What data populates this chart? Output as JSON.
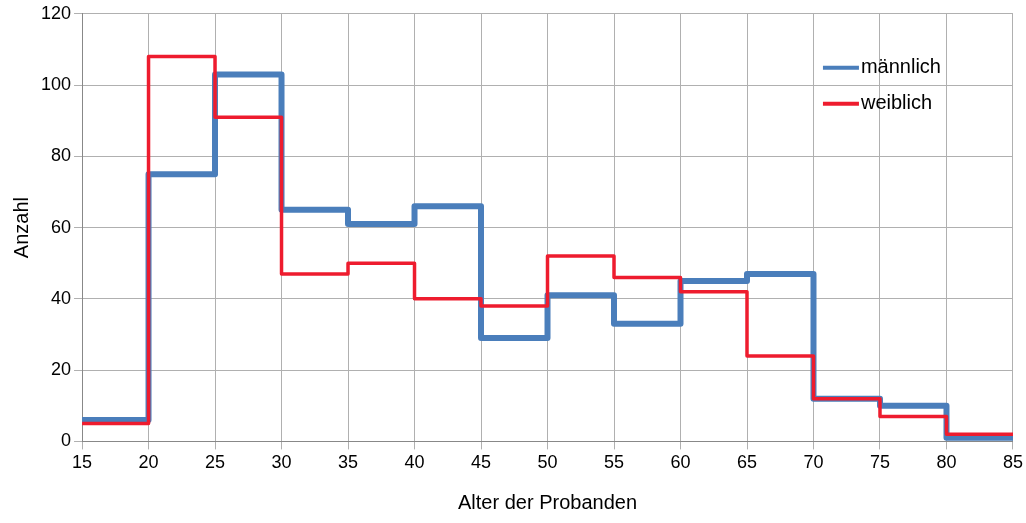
{
  "chart_data": {
    "type": "step",
    "xlabel": "Alter der Probanden",
    "ylabel": "Anzahl",
    "x": [
      15,
      20,
      25,
      30,
      35,
      40,
      45,
      50,
      55,
      60,
      65,
      70,
      75,
      80,
      85
    ],
    "series": [
      {
        "name": "männlich",
        "color": "#4a7ebb",
        "values": [
          6,
          75,
          103,
          65,
          61,
          66,
          29,
          41,
          33,
          45,
          47,
          12,
          10,
          1,
          1
        ]
      },
      {
        "name": "weiblich",
        "color": "#ee1c2e",
        "values": [
          5,
          108,
          91,
          47,
          50,
          40,
          38,
          52,
          46,
          42,
          24,
          12,
          7,
          2,
          2
        ]
      }
    ],
    "xlim": [
      15,
      85
    ],
    "xticks": [
      15,
      20,
      25,
      30,
      35,
      40,
      45,
      50,
      55,
      60,
      65,
      70,
      75,
      80,
      85
    ],
    "ylim": [
      0,
      120
    ],
    "yticks": [
      0,
      20,
      40,
      60,
      80,
      100,
      120
    ],
    "grid": true,
    "legend": "top right",
    "marker": "none",
    "line_style": "solid"
  }
}
